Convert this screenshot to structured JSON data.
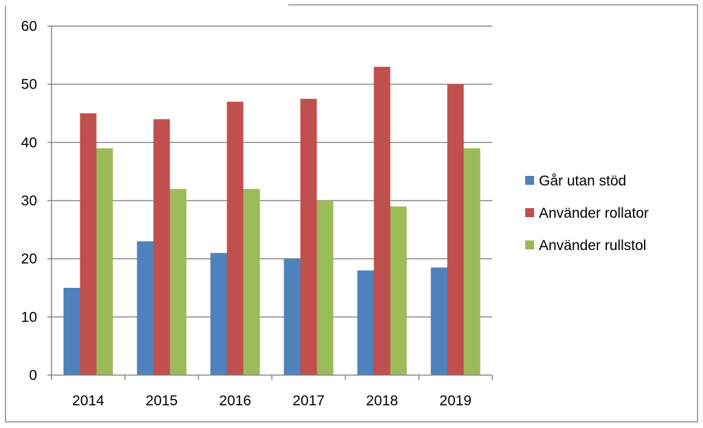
{
  "chart_data": {
    "type": "bar",
    "title": "",
    "xlabel": "",
    "ylabel": "",
    "categories": [
      "2014",
      "2015",
      "2016",
      "2017",
      "2018",
      "2019"
    ],
    "series": [
      {
        "name": "Går utan stöd",
        "color": "#4f81bd",
        "values": [
          15,
          23,
          21,
          20,
          18,
          18.5
        ]
      },
      {
        "name": "Använder rollator",
        "color": "#c0504d",
        "values": [
          45,
          44,
          47,
          47.5,
          53,
          50
        ]
      },
      {
        "name": "Använder rullstol",
        "color": "#9bbb59",
        "values": [
          39,
          32,
          32,
          30,
          29,
          39
        ]
      }
    ],
    "ylim": [
      0,
      60
    ],
    "yticks": [
      "0",
      "10",
      "20",
      "30",
      "40",
      "50",
      "60"
    ],
    "grid": true,
    "legend_position": "right"
  }
}
